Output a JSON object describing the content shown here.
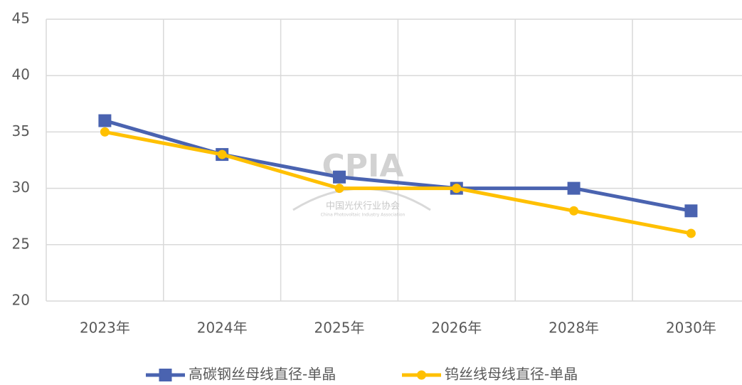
{
  "chart_data": {
    "type": "line",
    "categories": [
      "2023年",
      "2024年",
      "2025年",
      "2026年",
      "2028年",
      "2030年"
    ],
    "series": [
      {
        "name": "高碳钢丝母线直径-单晶",
        "color": "#4a63b0",
        "marker": "square",
        "values": [
          36,
          33,
          31,
          30,
          30,
          28
        ]
      },
      {
        "name": "钨丝线母线直径-单晶",
        "color": "#ffc000",
        "marker": "circle",
        "values": [
          35,
          33,
          30,
          30,
          28,
          26
        ]
      }
    ],
    "ylim": [
      20,
      45
    ],
    "yticks": [
      20,
      25,
      30,
      35,
      40,
      45
    ],
    "grid": true,
    "legend": "bottom",
    "watermark": {
      "logo": "CPIA",
      "name": "中国光伏行业协会",
      "english": "China Photovoltaic Industry Association"
    }
  }
}
